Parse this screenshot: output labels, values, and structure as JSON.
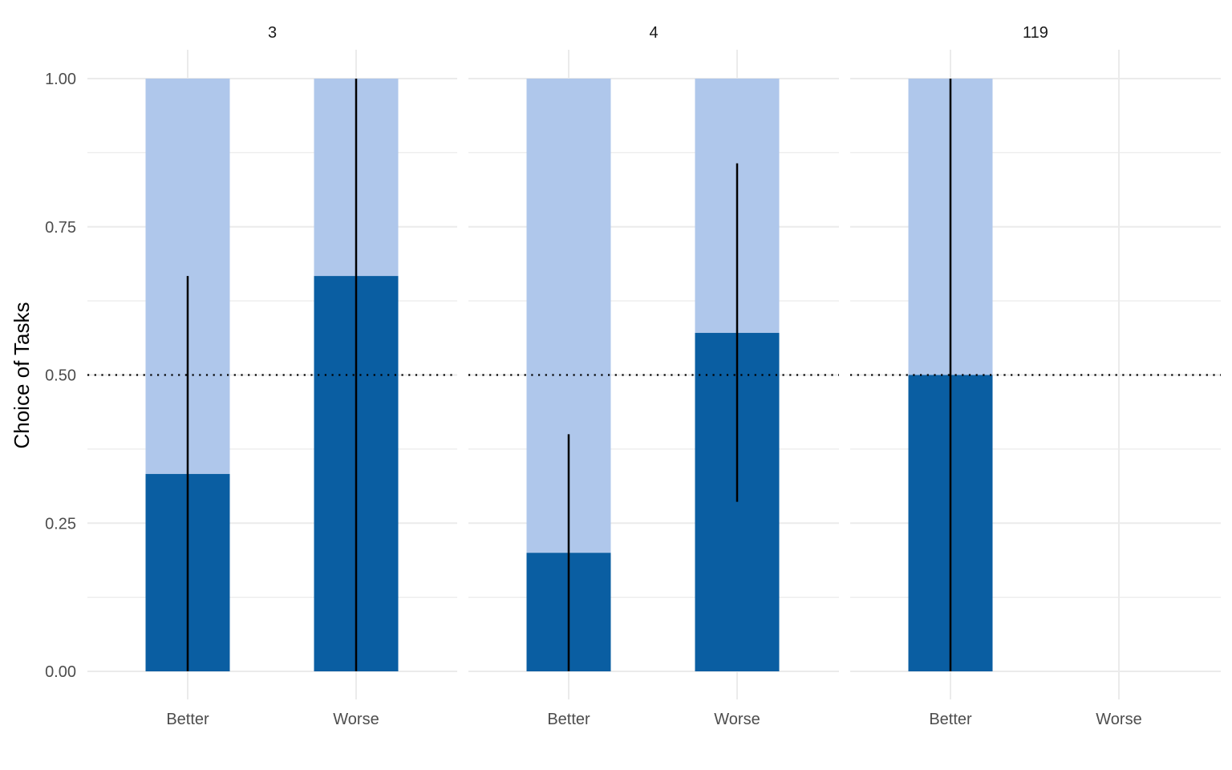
{
  "chart_data": {
    "type": "bar",
    "stacked": true,
    "facets": [
      "3",
      "4",
      "119"
    ],
    "categories": [
      "Better",
      "Worse"
    ],
    "ylabel": "Choice of Tasks",
    "xlabel": "",
    "ylim": [
      0,
      1
    ],
    "yticks": [
      "0.00",
      "0.25",
      "0.50",
      "0.75",
      "1.00"
    ],
    "reference_line": 0.5,
    "grid": true,
    "colors": {
      "dark": "#0a5ea2",
      "light": "#afc7eb",
      "errorbar": "#000000",
      "refline": "#000000"
    },
    "panels": [
      {
        "facet": "3",
        "bars": [
          {
            "category": "Better",
            "value": 0.333,
            "total": 1.0,
            "ci": [
              0.0,
              0.667
            ]
          },
          {
            "category": "Worse",
            "value": 0.667,
            "total": 1.0,
            "ci": [
              0.0,
              1.0
            ]
          }
        ]
      },
      {
        "facet": "4",
        "bars": [
          {
            "category": "Better",
            "value": 0.2,
            "total": 1.0,
            "ci": [
              0.0,
              0.4
            ]
          },
          {
            "category": "Worse",
            "value": 0.571,
            "total": 1.0,
            "ci": [
              0.286,
              0.857
            ]
          }
        ]
      },
      {
        "facet": "119",
        "bars": [
          {
            "category": "Better",
            "value": 0.5,
            "total": 1.0,
            "ci": [
              0.0,
              1.0
            ]
          }
        ]
      }
    ]
  }
}
